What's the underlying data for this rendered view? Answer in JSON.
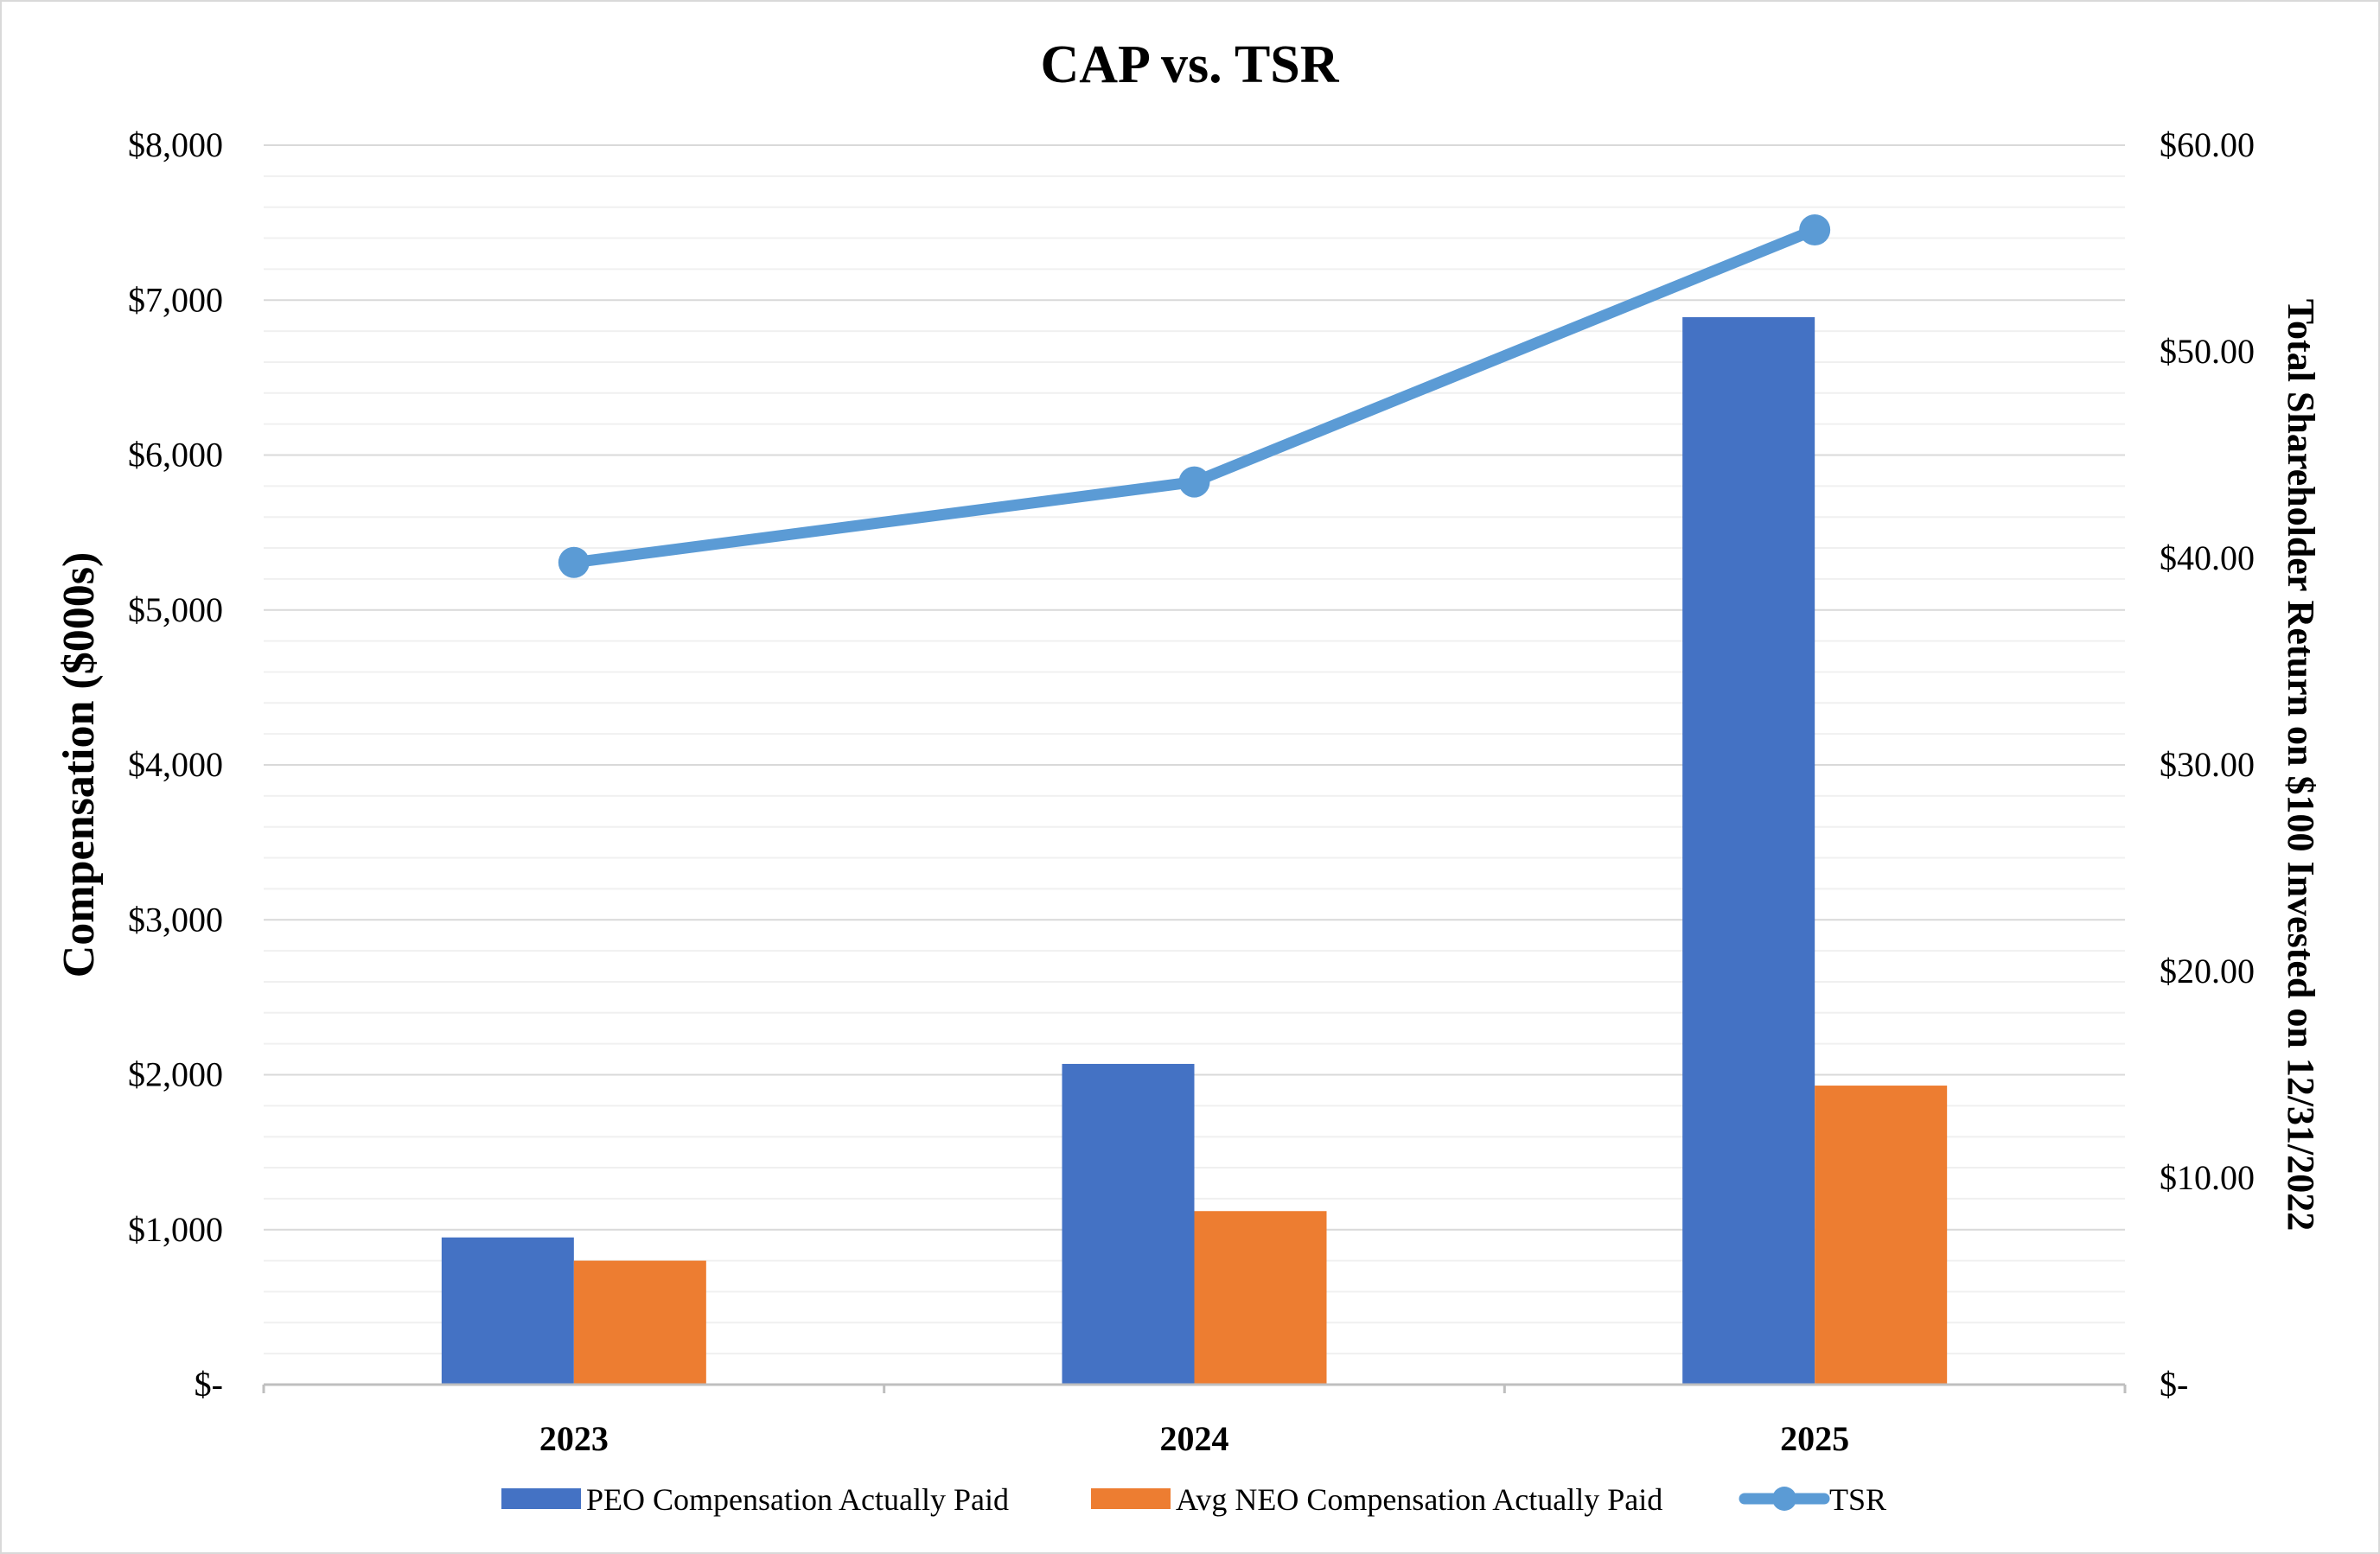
{
  "chart_data": {
    "type": "bar",
    "title": "CAP vs. TSR",
    "categories": [
      "2023",
      "2024",
      "2025"
    ],
    "ylabel": "Compensation ($000s)",
    "y2label": "Total Shareholder Return on $100 Invested on 12/31/2022",
    "ylim": [
      0,
      8000
    ],
    "y2lim": [
      0,
      60
    ],
    "y_ticks": [
      "$-",
      "$1,000",
      "$2,000",
      "$3,000",
      "$4,000",
      "$5,000",
      "$6,000",
      "$7,000",
      "$8,000"
    ],
    "y2_ticks": [
      "$-",
      "$10.00",
      "$20.00",
      "$30.00",
      "$40.00",
      "$50.00",
      "$60.00"
    ],
    "grid": true,
    "legend_position": "bottom",
    "series": [
      {
        "name": "PEO Compensation Actually Paid",
        "type": "bar",
        "axis": "left",
        "color": "#4472C4",
        "values": [
          950,
          2070,
          6890
        ]
      },
      {
        "name": "Avg NEO Compensation Actually Paid",
        "type": "bar",
        "axis": "left",
        "color": "#ED7D31",
        "values": [
          800,
          1120,
          1930
        ]
      },
      {
        "name": "TSR",
        "type": "line",
        "axis": "right",
        "color": "#5B9BD5",
        "values": [
          39.8,
          43.7,
          55.9
        ]
      }
    ]
  }
}
